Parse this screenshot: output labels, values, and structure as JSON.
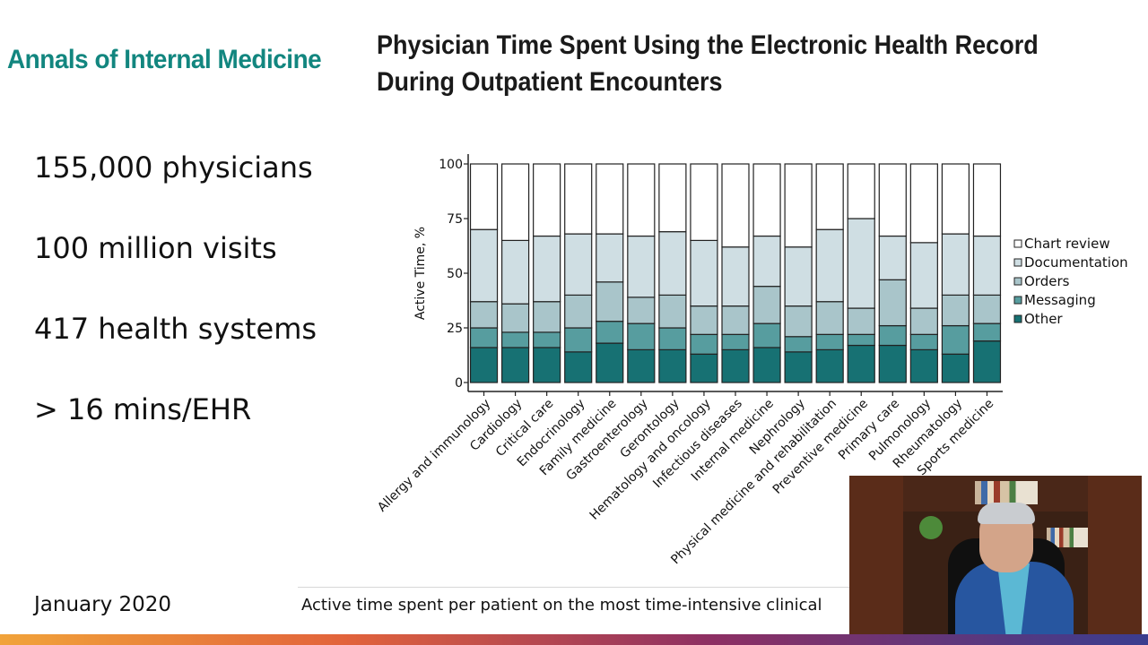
{
  "journal": "Annals of Internal Medicine",
  "title": "Physician Time Spent Using the Electronic Health Record During Outpatient Encounters",
  "stats": [
    "155,000 physicians",
    "100 million visits",
    "417 health systems",
    "> 16 mins/EHR"
  ],
  "date": "January 2020",
  "caption": "Active time spent per patient on the most time-intensive clinical",
  "colors": {
    "journal": "#12867f",
    "chart_review": "#ffffff",
    "documentation": "#cfdee3",
    "orders": "#a9c5ca",
    "messaging": "#579d9f",
    "other": "#177173"
  },
  "chart_data": {
    "type": "bar",
    "stacked": true,
    "title": "",
    "xlabel": "",
    "ylabel": "Active Time, %",
    "ylim": [
      0,
      100
    ],
    "yticks": [
      0,
      25,
      50,
      75,
      100
    ],
    "legend_position": "right",
    "categories": [
      "Allergy and immunology",
      "Cardiology",
      "Critical care",
      "Endocrinology",
      "Family medicine",
      "Gastroenterology",
      "Gerontology",
      "Hematology and oncology",
      "Infectious diseases",
      "Internal medicine",
      "Nephrology",
      "Physical medicine and rehabilitation",
      "Preventive medicine",
      "Primary care",
      "Pulmonology",
      "Rheumatology",
      "Sports medicine"
    ],
    "series": [
      {
        "name": "Other",
        "color": "#177173",
        "values": [
          16,
          16,
          16,
          14,
          18,
          15,
          15,
          13,
          15,
          16,
          14,
          15,
          17,
          17,
          15,
          13,
          19
        ]
      },
      {
        "name": "Messaging",
        "color": "#579d9f",
        "values": [
          9,
          7,
          7,
          11,
          10,
          12,
          10,
          9,
          7,
          11,
          7,
          7,
          5,
          9,
          7,
          13,
          8
        ]
      },
      {
        "name": "Orders",
        "color": "#a9c5ca",
        "values": [
          12,
          13,
          14,
          15,
          18,
          12,
          15,
          13,
          13,
          17,
          14,
          15,
          12,
          21,
          12,
          14,
          13
        ]
      },
      {
        "name": "Documentation",
        "color": "#cfdee3",
        "values": [
          33,
          29,
          30,
          28,
          22,
          28,
          29,
          30,
          27,
          23,
          27,
          33,
          41,
          20,
          30,
          28,
          27
        ]
      },
      {
        "name": "Chart review",
        "color": "#ffffff",
        "values": [
          30,
          35,
          33,
          32,
          32,
          33,
          31,
          35,
          38,
          33,
          38,
          30,
          25,
          33,
          36,
          32,
          33
        ]
      }
    ],
    "legend": [
      "Chart review",
      "Documentation",
      "Orders",
      "Messaging",
      "Other"
    ]
  }
}
